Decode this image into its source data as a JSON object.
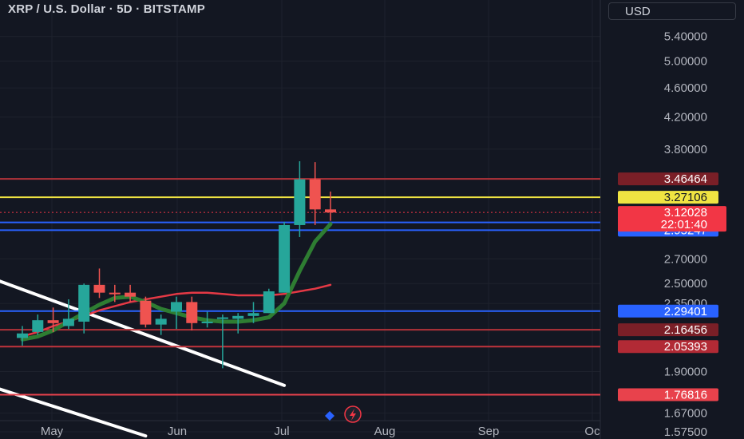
{
  "header": {
    "title": "XRP / U.S. Dollar · 5D · BITSTAMP",
    "currency": "USD"
  },
  "chart_data": {
    "type": "candlestick",
    "symbol": "XRP / U.S. Dollar",
    "interval": "5D",
    "exchange": "BITSTAMP",
    "y_scale": "log",
    "ylim": [
      1.54,
      6.05
    ],
    "grid": true,
    "price_ticks": [
      "5.40000",
      "5.00000",
      "4.60000",
      "4.20000",
      "3.80000",
      "2.70000",
      "2.50000",
      "2.35000",
      "1.90000",
      "1.67000",
      "1.57500"
    ],
    "month_labels": [
      "May",
      "Jun",
      "Jul",
      "Aug",
      "Sep",
      "Oc"
    ],
    "candles": [
      {
        "o": 2.11,
        "h": 2.19,
        "l": 2.06,
        "c": 2.14
      },
      {
        "o": 2.15,
        "h": 2.27,
        "l": 2.13,
        "c": 2.23
      },
      {
        "o": 2.23,
        "h": 2.32,
        "l": 2.15,
        "c": 2.21
      },
      {
        "o": 2.19,
        "h": 2.38,
        "l": 2.17,
        "c": 2.24
      },
      {
        "o": 2.22,
        "h": 2.5,
        "l": 2.14,
        "c": 2.49
      },
      {
        "o": 2.49,
        "h": 2.62,
        "l": 2.39,
        "c": 2.43
      },
      {
        "o": 2.43,
        "h": 2.49,
        "l": 2.36,
        "c": 2.42
      },
      {
        "o": 2.43,
        "h": 2.49,
        "l": 2.36,
        "c": 2.4
      },
      {
        "o": 2.37,
        "h": 2.4,
        "l": 2.18,
        "c": 2.2
      },
      {
        "o": 2.2,
        "h": 2.27,
        "l": 2.13,
        "c": 2.24
      },
      {
        "o": 2.29,
        "h": 2.4,
        "l": 2.17,
        "c": 2.36
      },
      {
        "o": 2.36,
        "h": 2.4,
        "l": 2.16,
        "c": 2.21
      },
      {
        "o": 2.21,
        "h": 2.29,
        "l": 2.18,
        "c": 2.22
      },
      {
        "o": 2.24,
        "h": 2.27,
        "l": 1.92,
        "c": 2.25
      },
      {
        "o": 2.24,
        "h": 2.28,
        "l": 2.14,
        "c": 2.26
      },
      {
        "o": 2.26,
        "h": 2.36,
        "l": 2.21,
        "c": 2.28
      },
      {
        "o": 2.28,
        "h": 2.46,
        "l": 2.28,
        "c": 2.44
      },
      {
        "o": 2.43,
        "h": 3.03,
        "l": 2.43,
        "c": 3.0
      },
      {
        "o": 3.0,
        "h": 3.66,
        "l": 2.89,
        "c": 3.46
      },
      {
        "o": 3.46,
        "h": 3.65,
        "l": 3.0,
        "c": 3.15
      },
      {
        "o": 3.15,
        "h": 3.33,
        "l": 3.04,
        "c": 3.12
      }
    ],
    "ma_fast": [
      2.1,
      2.12,
      2.16,
      2.22,
      2.28,
      2.34,
      2.39,
      2.4,
      2.36,
      2.31,
      2.28,
      2.25,
      2.23,
      2.22,
      2.22,
      2.23,
      2.25,
      2.35,
      2.6,
      2.85,
      3.01
    ],
    "ma_slow": [
      2.12,
      2.15,
      2.19,
      2.22,
      2.26,
      2.3,
      2.33,
      2.36,
      2.38,
      2.4,
      2.42,
      2.43,
      2.43,
      2.42,
      2.41,
      2.41,
      2.41,
      2.42,
      2.44,
      2.46,
      2.49
    ],
    "horizontal_levels": [
      {
        "value": 3.46464,
        "label": "3.46464",
        "color": "#b2333a",
        "label_bg": "#7a1f27"
      },
      {
        "value": 3.27106,
        "label": "3.27106",
        "color": "#f0e442",
        "label_bg": "#f0e442"
      },
      {
        "value": 3.02534,
        "label": "3.02534",
        "color": "#2962ff",
        "label_bg": "#2962ff"
      },
      {
        "value": 2.95247,
        "label": "2.95247",
        "color": "#2962ff",
        "label_bg": "#2962ff"
      },
      {
        "value": 2.29401,
        "label": "2.29401",
        "color": "#2962ff",
        "label_bg": "#2962ff"
      },
      {
        "value": 2.16456,
        "label": "2.16456",
        "color": "#b2333a",
        "label_bg": "#7a1f27"
      },
      {
        "value": 2.05393,
        "label": "2.05393",
        "color": "#c2343d",
        "label_bg": "#b22a35"
      },
      {
        "value": 1.76816,
        "label": "1.76816",
        "color": "#e8424c",
        "label_bg": "#e8424c"
      }
    ],
    "last_price": {
      "value": 3.12028,
      "label": "3.12028",
      "countdown": "22:01:40",
      "color": "#f23645"
    },
    "trendlines": [
      {
        "from": [
          -1.5,
          2.52
        ],
        "to": [
          17.0,
          1.82
        ],
        "color": "#ffffff"
      },
      {
        "from": [
          -1.5,
          1.8
        ],
        "to": [
          8.0,
          1.555
        ],
        "color": "#ffffff"
      }
    ],
    "colors": {
      "bull": "#26a69a",
      "bear": "#ef5350",
      "ma_fast": "#2e7d32",
      "ma_slow": "#e53945",
      "grid": "#1e222d",
      "background": "#131722"
    }
  }
}
